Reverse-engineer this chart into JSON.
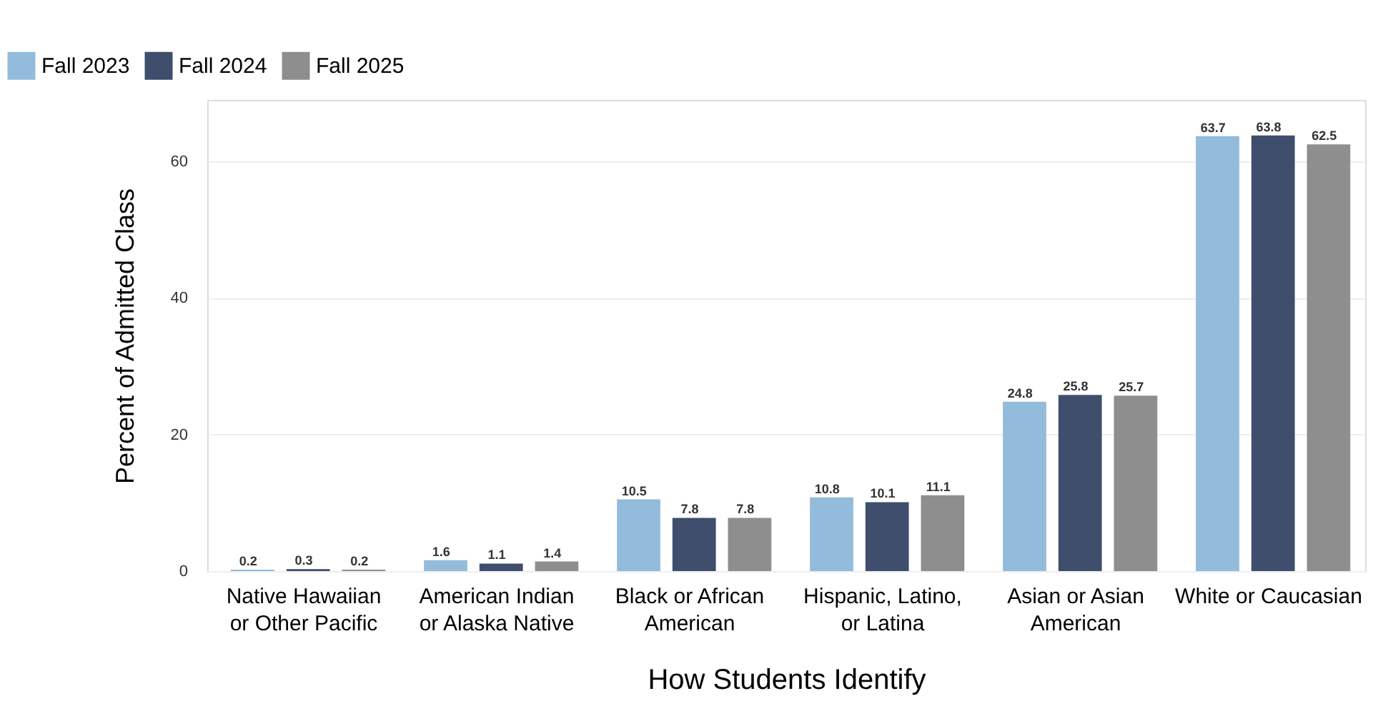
{
  "chart_data": {
    "type": "bar",
    "xlabel": "How Students Identify",
    "ylabel": "Percent of Admitted Class",
    "categories": [
      "Native Hawaiian or Other Pacific",
      "American Indian or Alaska Native",
      "Black or African American",
      "Hispanic, Latino, or Latina",
      "Asian or Asian American",
      "White or Caucasian"
    ],
    "series": [
      {
        "name": "Fall 2023",
        "color": "#93bbdc",
        "values": [
          0.2,
          1.6,
          10.5,
          10.8,
          24.8,
          63.7
        ]
      },
      {
        "name": "Fall 2024",
        "color": "#3e4e6c",
        "values": [
          0.3,
          1.1,
          7.8,
          10.1,
          25.8,
          63.8
        ]
      },
      {
        "name": "Fall 2025",
        "color": "#8e8e8e",
        "values": [
          0.2,
          1.4,
          7.8,
          11.1,
          25.7,
          62.5
        ]
      }
    ],
    "ylim": [
      0,
      69
    ],
    "yticks": [
      0,
      20,
      40,
      60
    ],
    "grid": "y",
    "legend": "top left",
    "data_labels": true
  }
}
